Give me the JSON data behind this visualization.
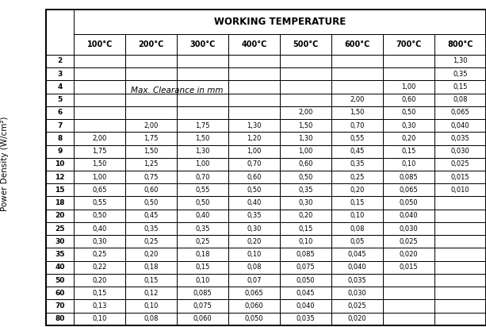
{
  "title": "WORKING TEMPERATURE",
  "ylabel": "Power Density (W/cm²)",
  "col_headers": [
    "100°C",
    "200°C",
    "300°C",
    "400°C",
    "500°C",
    "600°C",
    "700°C",
    "800°C"
  ],
  "row_headers": [
    "2",
    "3",
    "4",
    "5",
    "6",
    "7",
    "8",
    "9",
    "10",
    "12",
    "15",
    "18",
    "20",
    "25",
    "30",
    "35",
    "40",
    "50",
    "60",
    "70",
    "80"
  ],
  "clearance_label": "Max. Clearance in mm",
  "table_data": [
    [
      "",
      "",
      "",
      "",
      "",
      "",
      "",
      "1,30"
    ],
    [
      "",
      "",
      "",
      "",
      "",
      "",
      "",
      "0,35"
    ],
    [
      "",
      "",
      "",
      "",
      "",
      "",
      "1,00",
      "0,15"
    ],
    [
      "",
      "",
      "",
      "",
      "",
      "2,00",
      "0,60",
      "0,08"
    ],
    [
      "",
      "",
      "",
      "",
      "2,00",
      "1,50",
      "0,50",
      "0,065"
    ],
    [
      "",
      "2,00",
      "1,75",
      "1,30",
      "1,50",
      "0,70",
      "0,30",
      "0,040"
    ],
    [
      "2,00",
      "1,75",
      "1,50",
      "1,20",
      "1,30",
      "0,55",
      "0,20",
      "0,035"
    ],
    [
      "1,75",
      "1,50",
      "1,30",
      "1,00",
      "1,00",
      "0,45",
      "0,15",
      "0,030"
    ],
    [
      "1,50",
      "1,25",
      "1,00",
      "0,70",
      "0,60",
      "0,35",
      "0,10",
      "0,025"
    ],
    [
      "1,00",
      "0,75",
      "0,70",
      "0,60",
      "0,50",
      "0,25",
      "0,085",
      "0,015"
    ],
    [
      "0,65",
      "0,60",
      "0,55",
      "0,50",
      "0,35",
      "0,20",
      "0,065",
      "0,010"
    ],
    [
      "0,55",
      "0,50",
      "0,50",
      "0,40",
      "0,30",
      "0,15",
      "0,050",
      ""
    ],
    [
      "0,50",
      "0,45",
      "0,40",
      "0,35",
      "0,20",
      "0,10",
      "0,040",
      ""
    ],
    [
      "0,40",
      "0,35",
      "0,35",
      "0,30",
      "0,15",
      "0,08",
      "0,030",
      ""
    ],
    [
      "0,30",
      "0,25",
      "0,25",
      "0,20",
      "0,10",
      "0,05",
      "0,025",
      ""
    ],
    [
      "0,25",
      "0,20",
      "0,18",
      "0,10",
      "0,085",
      "0,045",
      "0,020",
      ""
    ],
    [
      "0,22",
      "0,18",
      "0,15",
      "0,08",
      "0,075",
      "0,040",
      "0,015",
      ""
    ],
    [
      "0,20",
      "0,15",
      "0,10",
      "0,07",
      "0,050",
      "0,035",
      "",
      ""
    ],
    [
      "0,15",
      "0,12",
      "0,085",
      "0,065",
      "0,045",
      "0,030",
      "",
      ""
    ],
    [
      "0,13",
      "0,10",
      "0,075",
      "0,060",
      "0,040",
      "0,025",
      "",
      ""
    ],
    [
      "0,10",
      "0,08",
      "0,060",
      "0,050",
      "0,035",
      "0,020",
      "",
      ""
    ]
  ],
  "bg_color": "#ffffff",
  "text_color": "#000000",
  "border_color": "#000000"
}
